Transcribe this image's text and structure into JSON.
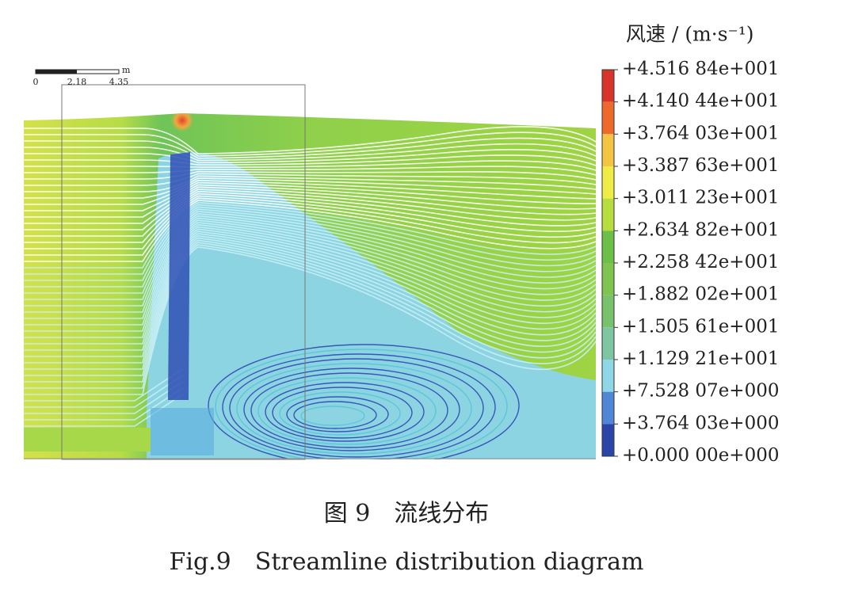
{
  "figure": {
    "scale_bar": {
      "labels": [
        0,
        2.18,
        4.35
      ],
      "unit": "m"
    },
    "colorbar": {
      "title": "风速 / (m·s⁻¹)",
      "ticks": [
        {
          "value": 45.1684,
          "label": "+4.516 84e+001"
        },
        {
          "value": 41.4044,
          "label": "+4.140 44e+001"
        },
        {
          "value": 37.6403,
          "label": "+3.764 03e+001"
        },
        {
          "value": 33.8763,
          "label": "+3.387 63e+001"
        },
        {
          "value": 30.1123,
          "label": "+3.011 23e+001"
        },
        {
          "value": 26.3482,
          "label": "+2.634 82e+001"
        },
        {
          "value": 22.5842,
          "label": "+2.258 42e+001"
        },
        {
          "value": 18.8202,
          "label": "+1.882 02e+001"
        },
        {
          "value": 15.0561,
          "label": "+1.505 61e+001"
        },
        {
          "value": 11.2921,
          "label": "+1.129 21e+001"
        },
        {
          "value": 7.52807,
          "label": "+7.528 07e+000"
        },
        {
          "value": 3.76403,
          "label": "+3.764 03e+000"
        },
        {
          "value": 0,
          "label": "+0.000 00e+000"
        }
      ],
      "colors": [
        "#d9342b",
        "#ee6a2c",
        "#f4c542",
        "#eeec45",
        "#b8dd3f",
        "#6cc048",
        "#7ec44e",
        "#79c16a",
        "#7ec6a2",
        "#8fd6e6",
        "#4f86d6",
        "#2a44a8"
      ]
    },
    "caption_cn": "图 9　流线分布",
    "caption_en": "Fig.9　Streamline distribution diagram"
  }
}
